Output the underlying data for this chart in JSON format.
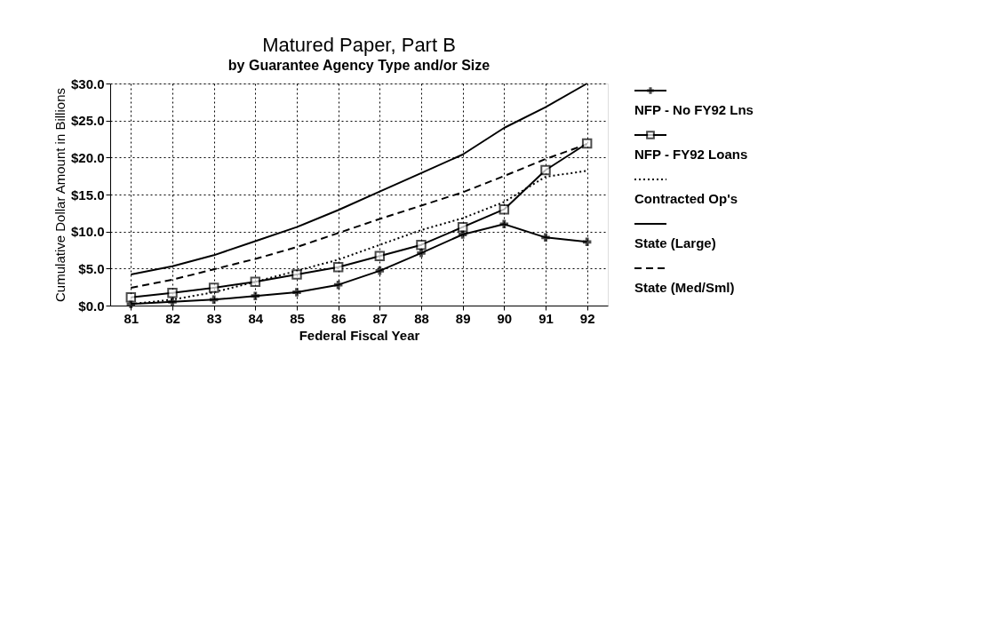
{
  "chart_data": {
    "type": "line",
    "title": "Matured Paper, Part B",
    "subtitle": "by Guarantee Agency Type and/or Size",
    "xlabel": "Federal Fiscal Year",
    "ylabel": "Cumulative Dollar Amount in Billions",
    "categories": [
      "81",
      "82",
      "83",
      "84",
      "85",
      "86",
      "87",
      "88",
      "89",
      "90",
      "91",
      "92"
    ],
    "ylim": [
      0,
      30
    ],
    "yticks": [
      {
        "value": 0,
        "label": "$0.0"
      },
      {
        "value": 5,
        "label": "$5.0"
      },
      {
        "value": 10,
        "label": "$10.0"
      },
      {
        "value": 15,
        "label": "$15.0"
      },
      {
        "value": 20,
        "label": "$20.0"
      },
      {
        "value": 25,
        "label": "$25.0"
      },
      {
        "value": 30,
        "label": "$30.0"
      }
    ],
    "grid": true,
    "legend": "right",
    "series": [
      {
        "name": "NFP - No FY92 Lns",
        "color": "#000000",
        "marker": "cross",
        "line_style": "solid",
        "values": [
          0.2,
          0.5,
          0.8,
          1.3,
          1.8,
          2.8,
          4.7,
          7.1,
          9.6,
          11.0,
          9.2,
          8.6
        ]
      },
      {
        "name": "NFP - FY92 Loans",
        "color": "#000000",
        "marker": "square",
        "line_style": "solid",
        "values": [
          1.1,
          1.7,
          2.4,
          3.2,
          4.2,
          5.2,
          6.7,
          8.2,
          10.6,
          13.0,
          18.3,
          21.9
        ]
      },
      {
        "name": "Contracted Op's",
        "color": "#000000",
        "marker": "none",
        "line_style": "dotted",
        "values": [
          0.2,
          0.8,
          1.8,
          3.2,
          4.7,
          6.2,
          8.2,
          10.2,
          11.8,
          14.0,
          17.4,
          18.2
        ]
      },
      {
        "name": "State (Large)",
        "color": "#000000",
        "marker": "none",
        "line_style": "solid",
        "values": [
          4.2,
          5.3,
          6.8,
          8.7,
          10.6,
          12.9,
          15.4,
          17.9,
          20.4,
          24.0,
          26.8,
          30.0
        ]
      },
      {
        "name": "State (Med/Sml)",
        "color": "#000000",
        "marker": "none",
        "line_style": "dashed",
        "values": [
          2.4,
          3.5,
          4.9,
          6.3,
          7.9,
          9.8,
          11.7,
          13.5,
          15.3,
          17.5,
          19.8,
          21.8
        ]
      }
    ]
  }
}
